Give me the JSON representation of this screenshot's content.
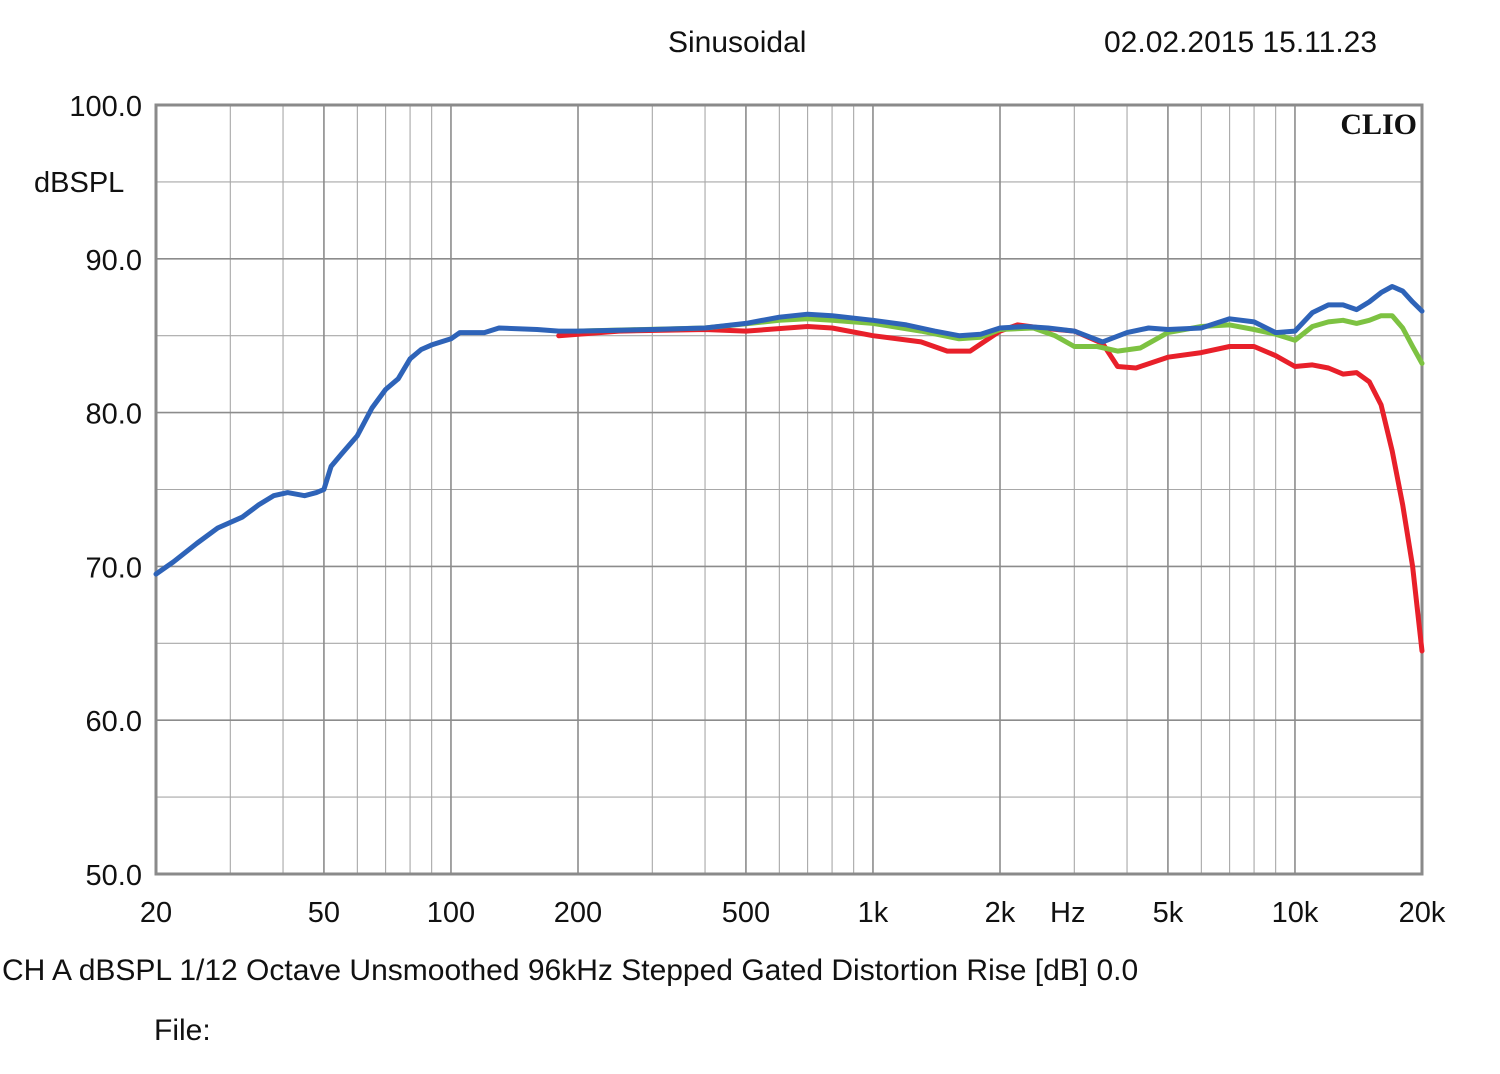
{
  "header": {
    "title": "Sinusoidal",
    "datetime": "02.02.2015 15.11.23"
  },
  "footer": {
    "settings": "CH A   dBSPL    1/12 Octave   Unsmoothed   96kHz   Stepped    Gated     Distortion Rise [dB] 0.0",
    "file_label": "File:"
  },
  "chart_data": {
    "type": "line",
    "title": "Sinusoidal",
    "brand": "CLIO",
    "xlabel": "Hz",
    "ylabel": "dBSPL",
    "xscale": "log",
    "xlim": [
      20,
      20000
    ],
    "ylim": [
      50,
      100
    ],
    "grid": true,
    "x_ticks": [
      {
        "value": 20,
        "label": "20"
      },
      {
        "value": 50,
        "label": "50"
      },
      {
        "value": 100,
        "label": "100"
      },
      {
        "value": 200,
        "label": "200"
      },
      {
        "value": 500,
        "label": "500"
      },
      {
        "value": 1000,
        "label": "1k"
      },
      {
        "value": 2000,
        "label": "2k"
      },
      {
        "value": 5000,
        "label": "5k"
      },
      {
        "value": 10000,
        "label": "10k"
      },
      {
        "value": 20000,
        "label": "20k"
      }
    ],
    "y_ticks": [
      {
        "value": 100,
        "label": "100.0"
      },
      {
        "value": 90,
        "label": "90.0"
      },
      {
        "value": 80,
        "label": "80.0"
      },
      {
        "value": 70,
        "label": "70.0"
      },
      {
        "value": 60,
        "label": "60.0"
      },
      {
        "value": 50,
        "label": "50.0"
      }
    ],
    "series": [
      {
        "color": "#e8202a",
        "points": [
          [
            180,
            85.0
          ],
          [
            250,
            85.3
          ],
          [
            400,
            85.4
          ],
          [
            500,
            85.3
          ],
          [
            700,
            85.6
          ],
          [
            800,
            85.5
          ],
          [
            1000,
            85.0
          ],
          [
            1300,
            84.6
          ],
          [
            1500,
            84.0
          ],
          [
            1700,
            84.0
          ],
          [
            2000,
            85.3
          ],
          [
            2200,
            85.7
          ],
          [
            2500,
            85.5
          ],
          [
            3000,
            85.3
          ],
          [
            3500,
            84.5
          ],
          [
            3800,
            83.0
          ],
          [
            4200,
            82.9
          ],
          [
            5000,
            83.6
          ],
          [
            6000,
            83.9
          ],
          [
            7000,
            84.3
          ],
          [
            8000,
            84.3
          ],
          [
            9000,
            83.7
          ],
          [
            10000,
            83.0
          ],
          [
            11000,
            83.1
          ],
          [
            12000,
            82.9
          ],
          [
            13000,
            82.5
          ],
          [
            14000,
            82.6
          ],
          [
            15000,
            82.0
          ],
          [
            16000,
            80.5
          ],
          [
            17000,
            77.5
          ],
          [
            18000,
            74.0
          ],
          [
            19000,
            70.0
          ],
          [
            20000,
            64.5
          ]
        ]
      },
      {
        "color": "#7dc242",
        "points": [
          [
            200,
            85.3
          ],
          [
            400,
            85.5
          ],
          [
            600,
            86.0
          ],
          [
            700,
            86.1
          ],
          [
            800,
            86.0
          ],
          [
            1000,
            85.8
          ],
          [
            1300,
            85.3
          ],
          [
            1600,
            84.8
          ],
          [
            1800,
            84.9
          ],
          [
            2000,
            85.4
          ],
          [
            2400,
            85.5
          ],
          [
            2700,
            85.0
          ],
          [
            3000,
            84.3
          ],
          [
            3400,
            84.3
          ],
          [
            3800,
            84.0
          ],
          [
            4300,
            84.2
          ],
          [
            5000,
            85.2
          ],
          [
            6000,
            85.6
          ],
          [
            7000,
            85.7
          ],
          [
            8000,
            85.4
          ],
          [
            9000,
            85.1
          ],
          [
            10000,
            84.7
          ],
          [
            11000,
            85.6
          ],
          [
            12000,
            85.9
          ],
          [
            13000,
            86.0
          ],
          [
            14000,
            85.8
          ],
          [
            15000,
            86.0
          ],
          [
            16000,
            86.3
          ],
          [
            17000,
            86.3
          ],
          [
            18000,
            85.5
          ],
          [
            19000,
            84.3
          ],
          [
            20000,
            83.2
          ]
        ]
      },
      {
        "color": "#2e63b8",
        "points": [
          [
            20,
            69.5
          ],
          [
            22,
            70.3
          ],
          [
            25,
            71.5
          ],
          [
            28,
            72.5
          ],
          [
            32,
            73.2
          ],
          [
            35,
            74.0
          ],
          [
            38,
            74.6
          ],
          [
            41,
            74.8
          ],
          [
            45,
            74.6
          ],
          [
            48,
            74.8
          ],
          [
            50,
            75.0
          ],
          [
            52,
            76.5
          ],
          [
            55,
            77.3
          ],
          [
            60,
            78.5
          ],
          [
            65,
            80.3
          ],
          [
            70,
            81.5
          ],
          [
            75,
            82.2
          ],
          [
            80,
            83.5
          ],
          [
            85,
            84.1
          ],
          [
            90,
            84.4
          ],
          [
            100,
            84.8
          ],
          [
            105,
            85.2
          ],
          [
            120,
            85.2
          ],
          [
            130,
            85.5
          ],
          [
            160,
            85.4
          ],
          [
            180,
            85.3
          ],
          [
            200,
            85.3
          ],
          [
            300,
            85.4
          ],
          [
            400,
            85.5
          ],
          [
            500,
            85.8
          ],
          [
            600,
            86.2
          ],
          [
            700,
            86.4
          ],
          [
            800,
            86.3
          ],
          [
            1000,
            86.0
          ],
          [
            1200,
            85.7
          ],
          [
            1400,
            85.3
          ],
          [
            1600,
            85.0
          ],
          [
            1800,
            85.1
          ],
          [
            2000,
            85.5
          ],
          [
            2300,
            85.6
          ],
          [
            2600,
            85.5
          ],
          [
            3000,
            85.3
          ],
          [
            3500,
            84.6
          ],
          [
            4000,
            85.2
          ],
          [
            4500,
            85.5
          ],
          [
            5000,
            85.4
          ],
          [
            6000,
            85.5
          ],
          [
            7000,
            86.1
          ],
          [
            8000,
            85.9
          ],
          [
            9000,
            85.2
          ],
          [
            10000,
            85.3
          ],
          [
            11000,
            86.5
          ],
          [
            12000,
            87.0
          ],
          [
            13000,
            87.0
          ],
          [
            14000,
            86.7
          ],
          [
            15000,
            87.2
          ],
          [
            16000,
            87.8
          ],
          [
            17000,
            88.2
          ],
          [
            18000,
            87.9
          ],
          [
            19000,
            87.2
          ],
          [
            20000,
            86.6
          ]
        ]
      }
    ]
  }
}
